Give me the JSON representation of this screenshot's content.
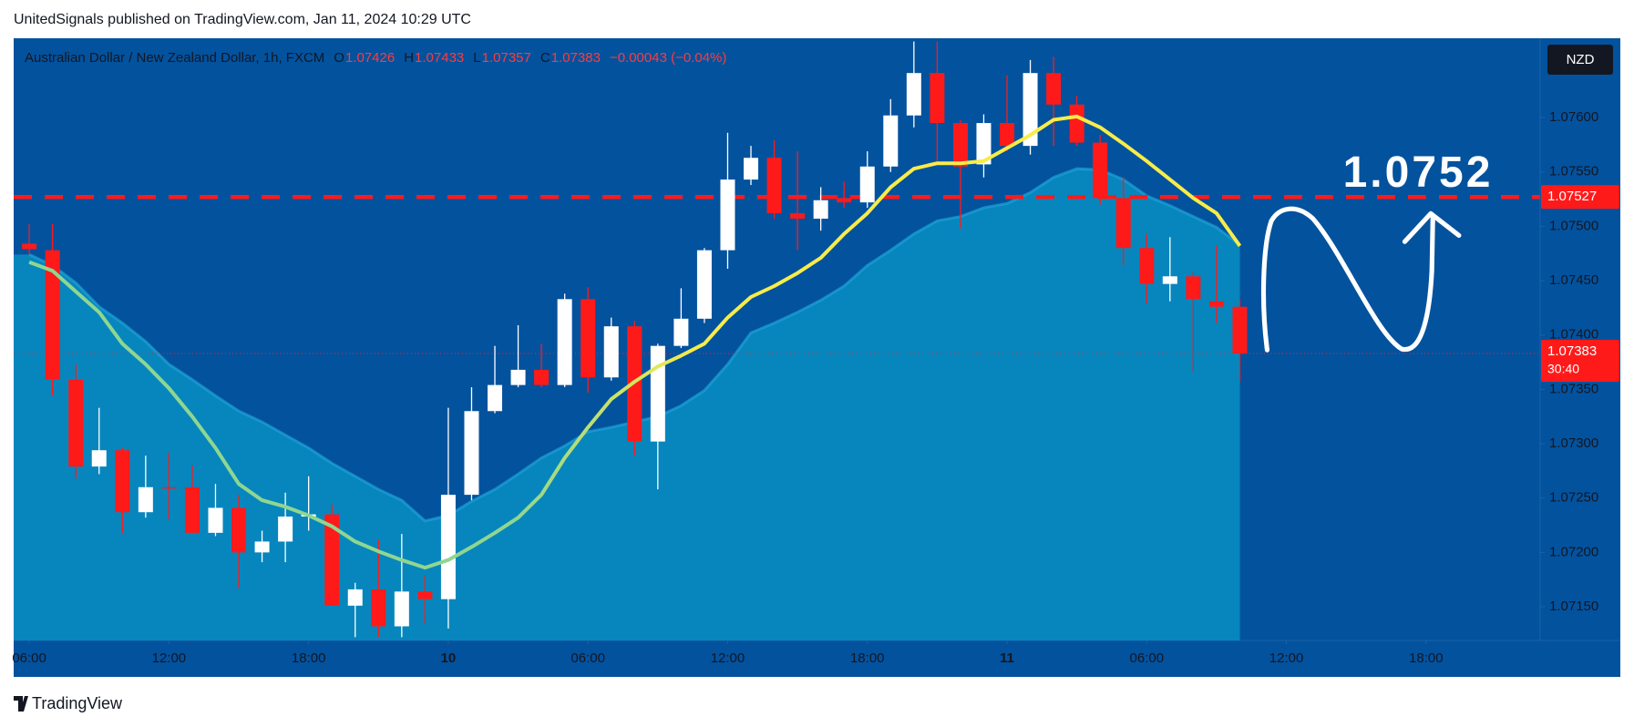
{
  "header": {
    "published": "UnitedSignals published on TradingView.com, Jan 11, 2024 10:29 UTC",
    "logo": "TradingView"
  },
  "chart_data": {
    "type": "candlestick",
    "title": "Australian Dollar / New Zealand Dollar, 1h, FXCM",
    "legend": {
      "o_label": "O",
      "open": "1.07426",
      "h_label": "H",
      "high": "1.07433",
      "l_label": "L",
      "low": "1.07357",
      "c_label": "C",
      "close": "1.07383",
      "change": "−0.00043 (−0.04%)"
    },
    "currency": "NZD",
    "open": [
      1.07484,
      1.07478,
      1.07359,
      1.07279,
      1.07294,
      1.07237,
      1.0726,
      1.0726,
      1.07218,
      1.07241,
      1.072,
      1.0721,
      1.07233,
      1.07235,
      1.07151,
      1.07166,
      1.07132,
      1.07164,
      1.07157,
      1.07253,
      1.0733,
      1.07354,
      1.07368,
      1.07354,
      1.07433,
      1.07361,
      1.07408,
      1.07302,
      1.0739,
      1.07415,
      1.07478,
      1.07543,
      1.07563,
      1.07512,
      1.07507,
      1.07526,
      1.07522,
      1.07555,
      1.07602,
      1.07641,
      1.07595,
      1.07557,
      1.07595,
      1.07574,
      1.07641,
      1.07612,
      1.07577,
      1.07526,
      1.0748,
      1.07447,
      1.07454,
      1.07431,
      1.07426
    ],
    "high": [
      1.07502,
      1.07502,
      1.07373,
      1.07333,
      1.07296,
      1.07289,
      1.07292,
      1.0728,
      1.07263,
      1.07253,
      1.0722,
      1.07255,
      1.0727,
      1.07244,
      1.07172,
      1.07212,
      1.07217,
      1.07179,
      1.07333,
      1.07352,
      1.0739,
      1.07409,
      1.07392,
      1.07438,
      1.07444,
      1.07416,
      1.07413,
      1.07392,
      1.07443,
      1.0748,
      1.07586,
      1.07574,
      1.07579,
      1.07569,
      1.07536,
      1.07541,
      1.07569,
      1.07617,
      1.0767,
      1.0767,
      1.07598,
      1.07603,
      1.07639,
      1.07653,
      1.07656,
      1.0762,
      1.07584,
      1.07545,
      1.07493,
      1.0749,
      1.07458,
      1.07482,
      1.07433
    ],
    "low": [
      1.07474,
      1.07344,
      1.07268,
      1.07272,
      1.07218,
      1.07232,
      1.0723,
      1.07218,
      1.07215,
      1.07167,
      1.07191,
      1.07191,
      1.0722,
      1.07151,
      1.07122,
      1.07122,
      1.07122,
      1.07134,
      1.0713,
      1.07248,
      1.07328,
      1.07352,
      1.07352,
      1.07352,
      1.07347,
      1.07358,
      1.07289,
      1.07258,
      1.07388,
      1.07411,
      1.07461,
      1.07538,
      1.07507,
      1.07478,
      1.07496,
      1.07517,
      1.07517,
      1.0755,
      1.07591,
      1.0756,
      1.07498,
      1.07545,
      1.07569,
      1.07566,
      1.07574,
      1.07574,
      1.0752,
      1.07464,
      1.07429,
      1.07431,
      1.07366,
      1.07411,
      1.07357
    ],
    "close": [
      1.07479,
      1.07359,
      1.07279,
      1.07294,
      1.07237,
      1.0726,
      1.07259,
      1.07218,
      1.07241,
      1.072,
      1.0721,
      1.07233,
      1.07235,
      1.07151,
      1.07166,
      1.07132,
      1.07164,
      1.07157,
      1.07253,
      1.0733,
      1.07354,
      1.07368,
      1.07354,
      1.07433,
      1.07361,
      1.07408,
      1.07302,
      1.0739,
      1.07415,
      1.07478,
      1.07543,
      1.07563,
      1.07512,
      1.07507,
      1.07524,
      1.07522,
      1.07555,
      1.07602,
      1.07641,
      1.07595,
      1.07555,
      1.07595,
      1.07574,
      1.07641,
      1.07612,
      1.07577,
      1.07526,
      1.0748,
      1.07447,
      1.07454,
      1.07433,
      1.07426,
      1.07383
    ],
    "up_color": "#ffffff",
    "down_color": "#ff1a1a",
    "ema": {
      "colors": [
        "#8fd690",
        "#f8ec48"
      ],
      "values": [
        1.07467,
        1.07459,
        1.0744,
        1.07421,
        1.07392,
        1.07373,
        1.07351,
        1.07325,
        1.07296,
        1.07263,
        1.07248,
        1.07242,
        1.07234,
        1.07224,
        1.0721,
        1.07201,
        1.07193,
        1.07186,
        1.07193,
        1.07205,
        1.07218,
        1.07232,
        1.07253,
        1.07287,
        1.07315,
        1.07341,
        1.07357,
        1.07371,
        1.07381,
        1.07392,
        1.07416,
        1.07435,
        1.07445,
        1.07457,
        1.07471,
        1.07493,
        1.07512,
        1.07536,
        1.07553,
        1.07558,
        1.07558,
        1.0756,
        1.07572,
        1.07584,
        1.07598,
        1.07601,
        1.07591,
        1.07576,
        1.0756,
        1.07543,
        1.07526,
        1.07512,
        1.07482
      ]
    },
    "band": {
      "color": "#0786bd",
      "values": [
        1.07474,
        1.07464,
        1.07448,
        1.07426,
        1.07411,
        1.07394,
        1.07373,
        1.07359,
        1.07344,
        1.0733,
        1.0732,
        1.07308,
        1.07296,
        1.07282,
        1.0727,
        1.07258,
        1.07248,
        1.07229,
        1.07234,
        1.07247,
        1.07258,
        1.07272,
        1.07287,
        1.07298,
        1.07311,
        1.07315,
        1.0732,
        1.07325,
        1.07335,
        1.07349,
        1.07373,
        1.07402,
        1.07411,
        1.07421,
        1.07432,
        1.07445,
        1.07464,
        1.07478,
        1.07493,
        1.07505,
        1.07509,
        1.07517,
        1.07521,
        1.07531,
        1.07545,
        1.07553,
        1.07552,
        1.07543,
        1.07528,
        1.07519,
        1.07509,
        1.07499,
        1.07483
      ]
    },
    "hline": {
      "value": 1.07527,
      "label": "1.07527",
      "color": "#ff1a1a"
    },
    "last_price": {
      "value": 1.07383,
      "label": "1.07383",
      "countdown": "30:40"
    },
    "annotation": "1.0752",
    "xlim": [
      -0.67,
      64.9
    ],
    "xticks": [
      {
        "value": 0,
        "label": "06:00"
      },
      {
        "value": 6,
        "label": "12:00"
      },
      {
        "value": 12,
        "label": "18:00"
      },
      {
        "value": 18,
        "label": "10"
      },
      {
        "value": 24,
        "label": "06:00"
      },
      {
        "value": 30,
        "label": "12:00"
      },
      {
        "value": 36,
        "label": "18:00"
      },
      {
        "value": 42,
        "label": "11"
      },
      {
        "value": 48,
        "label": "06:00"
      },
      {
        "value": 54,
        "label": "12:00"
      },
      {
        "value": 60,
        "label": "18:00"
      }
    ],
    "ylim": [
      1.07119,
      1.07673
    ],
    "yticks": [
      {
        "value": 1.0715,
        "label": "1.07150"
      },
      {
        "value": 1.072,
        "label": "1.07200"
      },
      {
        "value": 1.0725,
        "label": "1.07250"
      },
      {
        "value": 1.073,
        "label": "1.07300"
      },
      {
        "value": 1.0735,
        "label": "1.07350"
      },
      {
        "value": 1.074,
        "label": "1.07400"
      },
      {
        "value": 1.0745,
        "label": "1.07450"
      },
      {
        "value": 1.075,
        "label": "1.07500"
      },
      {
        "value": 1.0755,
        "label": "1.07550"
      },
      {
        "value": 1.076,
        "label": "1.07600"
      }
    ]
  }
}
